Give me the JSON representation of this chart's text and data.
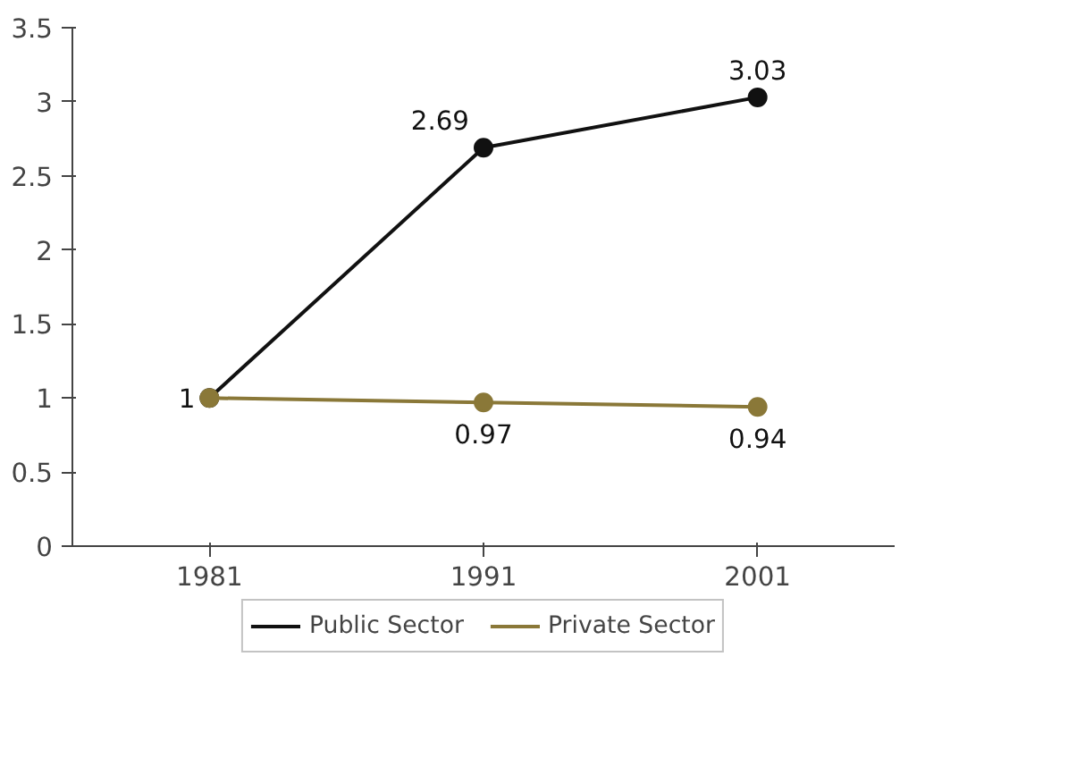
{
  "chart_data": {
    "type": "line",
    "categories": [
      "1981",
      "1991",
      "2001"
    ],
    "series": [
      {
        "name": "Public Sector",
        "color": "#111111",
        "values": [
          1,
          2.69,
          3.03
        ],
        "value_labels": [
          "1",
          "2.69",
          "3.03"
        ]
      },
      {
        "name": "Private Sector",
        "color": "#8a7838",
        "values": [
          1,
          0.97,
          0.94
        ],
        "value_labels": [
          null,
          "0.97",
          "0.94"
        ]
      }
    ],
    "ylim": [
      0,
      3.5
    ],
    "yticks": [
      0,
      0.5,
      1,
      1.5,
      2,
      2.5,
      3,
      3.5
    ],
    "grid": false,
    "legend": "bottom",
    "marker": "circle",
    "line_style": "solid"
  }
}
